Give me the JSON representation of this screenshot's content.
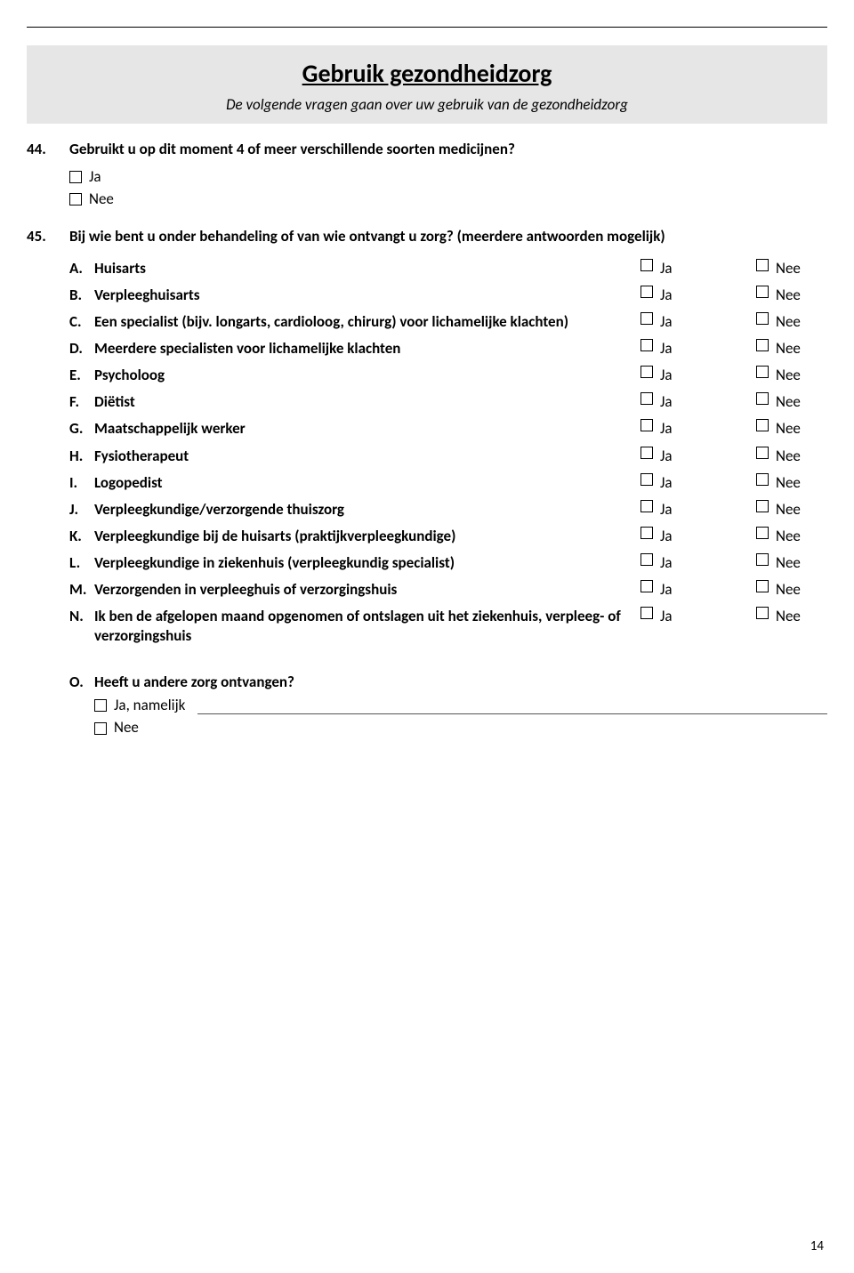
{
  "section": {
    "title": "Gebruik gezondheidzorg",
    "subtitle": "De volgende vragen gaan over uw gebruik van de gezondheidzorg"
  },
  "q44": {
    "number": "44.",
    "text": "Gebruikt u op dit moment 4 of meer verschillende soorten medicijnen?",
    "opt_ja": "Ja",
    "opt_nee": "Nee"
  },
  "q45": {
    "number": "45.",
    "text": "Bij wie bent u onder behandeling of van wie ontvangt u zorg? (meerdere antwoorden mogelijk)",
    "ja_label": "Ja",
    "nee_label": "Nee",
    "items": [
      {
        "letter": "A.",
        "text": "Huisarts"
      },
      {
        "letter": "B.",
        "text": "Verpleeghuisarts"
      },
      {
        "letter": "C.",
        "text": "Een specialist (bijv. longarts, cardioloog, chirurg) voor lichamelijke klachten)"
      },
      {
        "letter": "D.",
        "text": "Meerdere specialisten voor lichamelijke klachten"
      },
      {
        "letter": "E.",
        "text": "Psycholoog"
      },
      {
        "letter": "F.",
        "text": "Diëtist"
      },
      {
        "letter": "G.",
        "text": "Maatschappelijk werker"
      },
      {
        "letter": "H.",
        "text": "Fysiotherapeut"
      },
      {
        "letter": "I.",
        "text": "Logopedist"
      },
      {
        "letter": "J.",
        "text": "Verpleegkundige/verzorgende thuiszorg"
      },
      {
        "letter": "K.",
        "text": "Verpleegkundige bij de huisarts (praktijkverpleegkundige)"
      },
      {
        "letter": "L.",
        "text": "Verpleegkundige in ziekenhuis (verpleegkundig specialist)"
      },
      {
        "letter": "M.",
        "text": "Verzorgenden in verpleeghuis of verzorgingshuis"
      },
      {
        "letter": "N.",
        "text": "Ik ben de afgelopen maand opgenomen of ontslagen uit het ziekenhuis, verpleeg- of verzorgingshuis"
      }
    ],
    "other": {
      "letter": "O.",
      "text": "Heeft u andere zorg ontvangen?",
      "ja_namelijk": "Ja, namelijk",
      "nee": "Nee"
    }
  },
  "page_number": "14",
  "colors": {
    "header_bg": "#e6e6e6",
    "page_bg": "#ffffff",
    "text": "#000000"
  },
  "fonts": {
    "body_size": 17,
    "title_size": 28
  }
}
